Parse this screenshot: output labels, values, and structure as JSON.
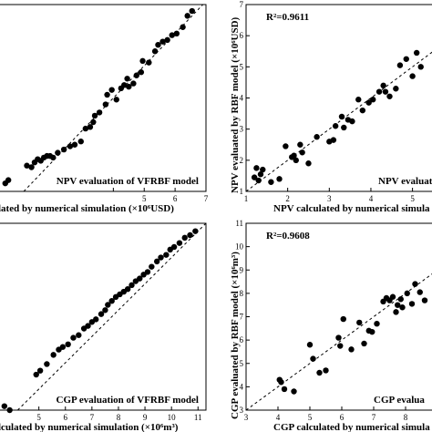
{
  "chart_data": [
    {
      "type": "scatter",
      "title": "NPV evaluation of VFRBF model",
      "xlabel": "lated by numerical simulation (×10⁶USD)",
      "ylabel": "",
      "xlim": [
        0.3,
        7
      ],
      "ylim": [
        1.1,
        6.9
      ],
      "xticks": [
        "",
        "5",
        "6",
        "7"
      ],
      "xtick_values": [
        4,
        5,
        6,
        7
      ],
      "yticks": [],
      "reference_line": "y = x",
      "points": [
        [
          0.5,
          1.35
        ],
        [
          0.6,
          1.45
        ],
        [
          1.2,
          1.9
        ],
        [
          1.35,
          1.85
        ],
        [
          1.45,
          2.0
        ],
        [
          1.55,
          2.1
        ],
        [
          1.65,
          2.05
        ],
        [
          1.75,
          2.15
        ],
        [
          1.85,
          2.2
        ],
        [
          1.95,
          2.2
        ],
        [
          2.05,
          2.15
        ],
        [
          2.2,
          2.3
        ],
        [
          2.4,
          2.4
        ],
        [
          2.6,
          2.5
        ],
        [
          2.75,
          2.55
        ],
        [
          2.95,
          2.65
        ],
        [
          3.1,
          3.05
        ],
        [
          3.25,
          3.1
        ],
        [
          3.35,
          3.25
        ],
        [
          3.4,
          3.45
        ],
        [
          3.55,
          3.55
        ],
        [
          3.75,
          3.8
        ],
        [
          3.8,
          4.1
        ],
        [
          3.95,
          4.25
        ],
        [
          4.1,
          3.95
        ],
        [
          4.25,
          4.3
        ],
        [
          4.35,
          4.4
        ],
        [
          4.45,
          4.6
        ],
        [
          4.5,
          4.35
        ],
        [
          4.65,
          4.45
        ],
        [
          4.75,
          4.7
        ],
        [
          4.9,
          4.8
        ],
        [
          4.95,
          5.15
        ],
        [
          5.15,
          5.1
        ],
        [
          5.35,
          5.45
        ],
        [
          5.45,
          5.65
        ],
        [
          5.6,
          5.75
        ],
        [
          5.75,
          5.8
        ],
        [
          5.9,
          5.95
        ],
        [
          6.05,
          6.0
        ],
        [
          6.25,
          6.2
        ],
        [
          6.4,
          6.55
        ],
        [
          6.55,
          6.7
        ]
      ]
    },
    {
      "type": "scatter",
      "title": "NPV evaluation of",
      "annotation": "R²=0.9611",
      "xlabel": "NPV calculated by numerical simula",
      "ylabel": "NPV evaluated by RBF model (×10⁶USD)",
      "xlim": [
        1,
        5.6
      ],
      "ylim": [
        1,
        7
      ],
      "xticks": [
        "1",
        "2",
        "3",
        "4",
        "5"
      ],
      "yticks": [
        "1",
        "2",
        "3",
        "4",
        "5",
        "6",
        "7"
      ],
      "reference_line": "y = x",
      "points": [
        [
          1.2,
          1.45
        ],
        [
          1.25,
          1.75
        ],
        [
          1.3,
          1.35
        ],
        [
          1.35,
          1.55
        ],
        [
          1.4,
          1.7
        ],
        [
          1.6,
          1.3
        ],
        [
          1.8,
          1.4
        ],
        [
          1.95,
          2.45
        ],
        [
          2.1,
          2.1
        ],
        [
          2.15,
          2.15
        ],
        [
          2.2,
          2.0
        ],
        [
          2.3,
          2.5
        ],
        [
          2.35,
          2.25
        ],
        [
          2.5,
          1.9
        ],
        [
          2.7,
          2.75
        ],
        [
          3.0,
          2.6
        ],
        [
          3.1,
          2.65
        ],
        [
          3.15,
          3.1
        ],
        [
          3.3,
          3.4
        ],
        [
          3.35,
          3.05
        ],
        [
          3.45,
          3.3
        ],
        [
          3.55,
          3.25
        ],
        [
          3.7,
          3.95
        ],
        [
          3.8,
          3.6
        ],
        [
          3.95,
          3.85
        ],
        [
          4.05,
          3.95
        ],
        [
          4.2,
          4.2
        ],
        [
          4.3,
          4.4
        ],
        [
          4.35,
          4.2
        ],
        [
          4.45,
          4.05
        ],
        [
          4.6,
          4.3
        ],
        [
          4.7,
          5.05
        ],
        [
          4.85,
          5.25
        ],
        [
          5.0,
          4.7
        ],
        [
          5.1,
          5.45
        ],
        [
          5.2,
          5.0
        ]
      ]
    },
    {
      "type": "scatter",
      "title": "CGP evaluation of VFRBF model",
      "xlabel": "lculated by numerical simulation (×10⁶m³)",
      "ylabel": "",
      "xlim": [
        3.5,
        11.3
      ],
      "ylim": [
        4.2,
        11.3
      ],
      "xticks": [
        "5",
        "6",
        "7",
        "8",
        "9",
        "10",
        "11"
      ],
      "yticks": [],
      "reference_line": "y = x",
      "points": [
        [
          3.7,
          4.35
        ],
        [
          3.9,
          4.2
        ],
        [
          4.9,
          5.55
        ],
        [
          5.05,
          5.7
        ],
        [
          5.3,
          5.95
        ],
        [
          5.55,
          6.3
        ],
        [
          5.75,
          6.5
        ],
        [
          5.9,
          6.6
        ],
        [
          6.1,
          6.7
        ],
        [
          6.3,
          6.95
        ],
        [
          6.5,
          7.05
        ],
        [
          6.7,
          7.3
        ],
        [
          6.85,
          7.4
        ],
        [
          7.0,
          7.55
        ],
        [
          7.15,
          7.65
        ],
        [
          7.35,
          7.85
        ],
        [
          7.5,
          8.0
        ],
        [
          7.6,
          8.2
        ],
        [
          7.75,
          8.35
        ],
        [
          7.9,
          8.5
        ],
        [
          8.05,
          8.6
        ],
        [
          8.2,
          8.7
        ],
        [
          8.35,
          8.8
        ],
        [
          8.5,
          8.95
        ],
        [
          8.65,
          9.1
        ],
        [
          8.8,
          9.2
        ],
        [
          8.95,
          9.35
        ],
        [
          9.1,
          9.45
        ],
        [
          9.25,
          9.65
        ],
        [
          9.45,
          9.85
        ],
        [
          9.6,
          10.0
        ],
        [
          9.8,
          10.1
        ],
        [
          9.95,
          10.3
        ],
        [
          10.1,
          10.4
        ],
        [
          10.3,
          10.55
        ],
        [
          10.5,
          10.75
        ],
        [
          10.7,
          10.85
        ],
        [
          10.9,
          11.0
        ]
      ]
    },
    {
      "type": "scatter",
      "title": "CGP evalua",
      "annotation": "R²=0.9608",
      "xlabel": "CGP calculated by numerical simula",
      "ylabel": "CGP evaluated by RBF model (×10⁶m³)",
      "xlim": [
        3,
        9
      ],
      "ylim": [
        3,
        11
      ],
      "xticks": [
        "3",
        "4",
        "5",
        "6",
        "7",
        "8"
      ],
      "yticks": [
        "3",
        "4",
        "5",
        "6",
        "7",
        "8",
        "9",
        "10",
        "11"
      ],
      "reference_line": "y = x",
      "points": [
        [
          4.05,
          4.3
        ],
        [
          4.1,
          4.2
        ],
        [
          4.2,
          3.9
        ],
        [
          4.5,
          3.8
        ],
        [
          5.0,
          5.8
        ],
        [
          5.1,
          5.2
        ],
        [
          5.3,
          4.6
        ],
        [
          5.5,
          4.7
        ],
        [
          5.9,
          6.1
        ],
        [
          5.95,
          5.75
        ],
        [
          6.05,
          6.9
        ],
        [
          6.3,
          5.6
        ],
        [
          6.55,
          6.75
        ],
        [
          6.7,
          5.85
        ],
        [
          6.85,
          6.4
        ],
        [
          6.95,
          6.35
        ],
        [
          7.1,
          6.7
        ],
        [
          7.3,
          7.65
        ],
        [
          7.4,
          7.8
        ],
        [
          7.5,
          7.7
        ],
        [
          7.6,
          7.85
        ],
        [
          7.7,
          7.2
        ],
        [
          7.75,
          7.5
        ],
        [
          7.85,
          7.75
        ],
        [
          7.9,
          7.4
        ],
        [
          8.05,
          8.0
        ],
        [
          8.2,
          7.55
        ],
        [
          8.3,
          8.4
        ],
        [
          8.45,
          8.05
        ],
        [
          8.6,
          7.7
        ]
      ]
    }
  ]
}
